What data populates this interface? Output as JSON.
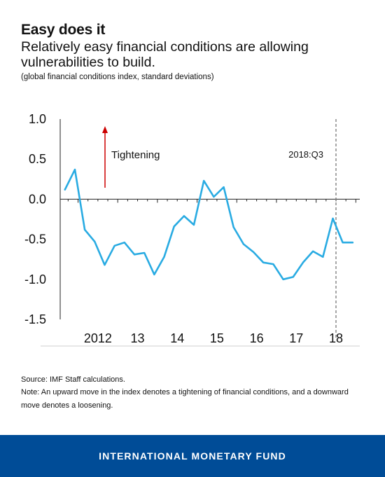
{
  "header": {
    "title": "Easy does it",
    "subtitle": "Relatively easy financial conditions are allowing vulnerabilities to build.",
    "units": "(global financial conditions index, standard deviations)"
  },
  "chart_data": {
    "type": "line",
    "series_color": "#29abe2",
    "arrow_color": "#cc0000",
    "x_ticks": [
      {
        "x": 2012,
        "label": "2012"
      },
      {
        "x": 2013,
        "label": "13"
      },
      {
        "x": 2014,
        "label": "14"
      },
      {
        "x": 2015,
        "label": "15"
      },
      {
        "x": 2016,
        "label": "16"
      },
      {
        "x": 2017,
        "label": "17"
      },
      {
        "x": 2018,
        "label": "18"
      }
    ],
    "y_ticks": [
      {
        "v": 1.0,
        "label": "1.0"
      },
      {
        "v": 0.5,
        "label": "0.5"
      },
      {
        "v": 0.0,
        "label": "0.0"
      },
      {
        "v": -0.5,
        "label": "-0.5"
      },
      {
        "v": -1.0,
        "label": "-1.0"
      },
      {
        "v": -1.5,
        "label": "-1.5"
      }
    ],
    "xlim": [
      2011.55,
      2019.1
    ],
    "ylim": [
      -1.5,
      1.0
    ],
    "x": [
      2011.67,
      2011.92,
      2012.17,
      2012.42,
      2012.67,
      2012.92,
      2013.17,
      2013.42,
      2013.67,
      2013.92,
      2014.17,
      2014.42,
      2014.67,
      2014.92,
      2015.17,
      2015.42,
      2015.67,
      2015.92,
      2016.17,
      2016.42,
      2016.67,
      2016.92,
      2017.17,
      2017.42,
      2017.67,
      2017.92,
      2018.17,
      2018.42,
      2018.67,
      2018.92
    ],
    "y": [
      0.12,
      0.37,
      -0.38,
      -0.53,
      -0.82,
      -0.58,
      -0.54,
      -0.69,
      -0.67,
      -0.94,
      -0.72,
      -0.34,
      -0.21,
      -0.32,
      0.23,
      0.03,
      0.15,
      -0.35,
      -0.56,
      -0.66,
      -0.79,
      -0.81,
      -1.0,
      -0.97,
      -0.79,
      -0.65,
      -0.72,
      -0.24,
      -0.54,
      -0.54
    ],
    "annotations": {
      "arrow_label": "Tightening",
      "vline_x": 2018.5,
      "vline_label": "2018:Q3"
    },
    "grid": false
  },
  "footer_notes": {
    "source": "Source: IMF Staff calculations.",
    "note": "Note: An upward move in the index denotes a tightening of financial conditions, and a downward move denotes a loosening."
  },
  "footer": {
    "org": "INTERNATIONAL MONETARY FUND",
    "bar_color": "#004c97"
  }
}
